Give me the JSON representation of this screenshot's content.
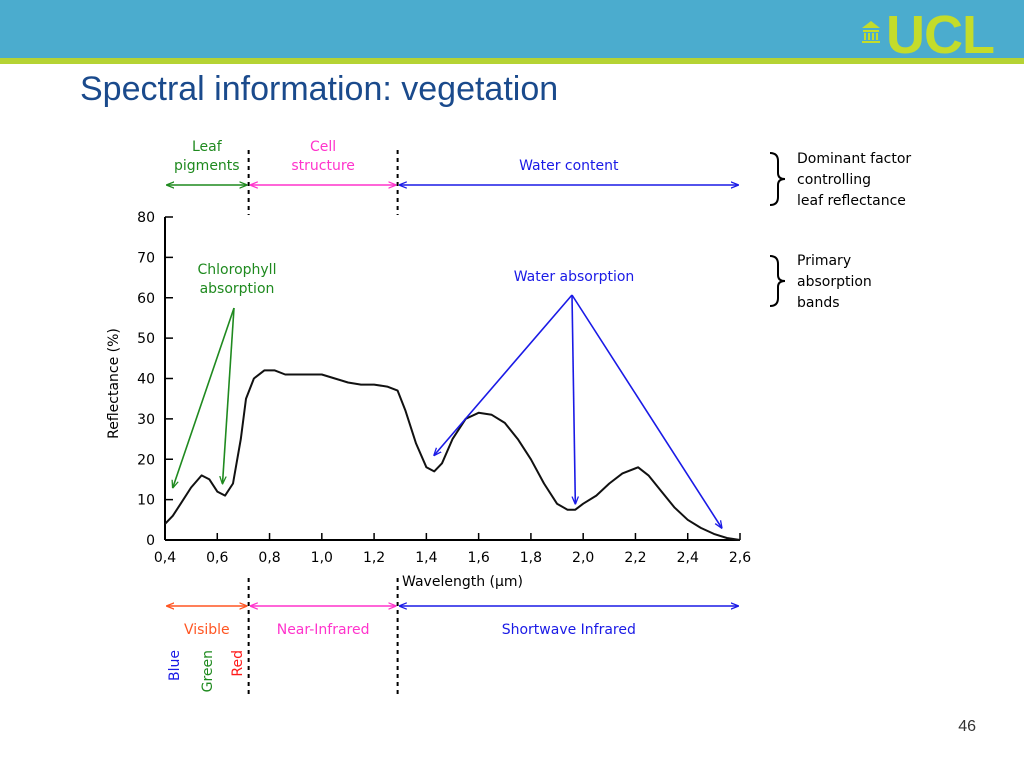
{
  "slide": {
    "title": "Spectral information: vegetation",
    "page_number": "46",
    "logo_text": "UCL"
  },
  "colors": {
    "header_blue": "#4bacce",
    "header_green": "#b5d334",
    "logo_green": "#c4dc2a",
    "title_blue": "#1a4a8c",
    "green": "#1f8a1f",
    "magenta": "#ff33cc",
    "blue": "#1a1ae6",
    "orange": "#ff5522",
    "red": "#ff1a1a"
  },
  "chart_data": {
    "type": "line",
    "xlabel": "Wavelength (μm)",
    "ylabel": "Reflectance (%)",
    "xlim": [
      0.4,
      2.6
    ],
    "ylim": [
      0,
      80
    ],
    "x_ticks": [
      "0,4",
      "0,6",
      "0,8",
      "1,0",
      "1,2",
      "1,4",
      "1,6",
      "1,8",
      "2,0",
      "2,2",
      "2,4",
      "2,6"
    ],
    "y_ticks": [
      "0",
      "10",
      "20",
      "30",
      "40",
      "50",
      "60",
      "70",
      "80"
    ],
    "grid": false,
    "series": [
      {
        "x": [
          0.4,
          0.43,
          0.46,
          0.5,
          0.54,
          0.57,
          0.6,
          0.63,
          0.66,
          0.69,
          0.71,
          0.74,
          0.78,
          0.82,
          0.86,
          0.9,
          0.95,
          1.0,
          1.05,
          1.1,
          1.15,
          1.2,
          1.25,
          1.29,
          1.32,
          1.36,
          1.4,
          1.43,
          1.46,
          1.5,
          1.55,
          1.6,
          1.65,
          1.7,
          1.75,
          1.8,
          1.85,
          1.9,
          1.94,
          1.97,
          2.0,
          2.05,
          2.1,
          2.15,
          2.21,
          2.25,
          2.3,
          2.35,
          2.4,
          2.45,
          2.5,
          2.55,
          2.6
        ],
        "y": [
          4,
          6,
          9,
          13,
          16,
          15,
          12,
          11,
          14,
          25,
          35,
          40,
          42,
          42,
          41,
          41,
          41,
          41,
          40,
          39,
          38.5,
          38.5,
          38,
          37,
          32,
          24,
          18,
          17,
          19,
          25,
          30,
          31.5,
          31,
          29,
          25,
          20,
          14,
          9,
          7.5,
          7.5,
          9,
          11,
          14,
          16.5,
          18,
          16,
          12,
          8,
          5,
          3,
          1.5,
          0.5,
          0
        ]
      }
    ],
    "regions_top": [
      {
        "label": "Leaf\npigments",
        "from": 0.4,
        "to": 0.72,
        "color": "green"
      },
      {
        "label": "Cell\nstructure",
        "from": 0.72,
        "to": 1.29,
        "color": "magenta"
      },
      {
        "label": "Water content",
        "from": 1.29,
        "to": 2.6,
        "color": "blue"
      }
    ],
    "regions_bottom": [
      {
        "label": "Visible",
        "from": 0.4,
        "to": 0.72,
        "color": "orange"
      },
      {
        "label": "Near-Infrared",
        "from": 0.72,
        "to": 1.29,
        "color": "magenta"
      },
      {
        "label": "Shortwave Infrared",
        "from": 1.29,
        "to": 2.6,
        "color": "blue"
      }
    ],
    "visible_bands": [
      {
        "label": "Blue",
        "color": "blue"
      },
      {
        "label": "Green",
        "color": "green"
      },
      {
        "label": "Red",
        "color": "red"
      }
    ],
    "region_dividers_x": [
      0.72,
      1.29
    ],
    "annotations": [
      {
        "label": "Chlorophyll\nabsorption",
        "color": "green",
        "targets": [
          [
            0.43,
            13
          ],
          [
            0.62,
            14
          ]
        ]
      },
      {
        "label": "Water absorption",
        "color": "blue",
        "targets": [
          [
            1.43,
            21
          ],
          [
            1.97,
            9
          ],
          [
            2.53,
            3
          ]
        ]
      }
    ],
    "legend_notes": [
      "Dominant factor\ncontrolling\nleaf reflectance",
      "Primary\nabsorption\nbands"
    ]
  }
}
